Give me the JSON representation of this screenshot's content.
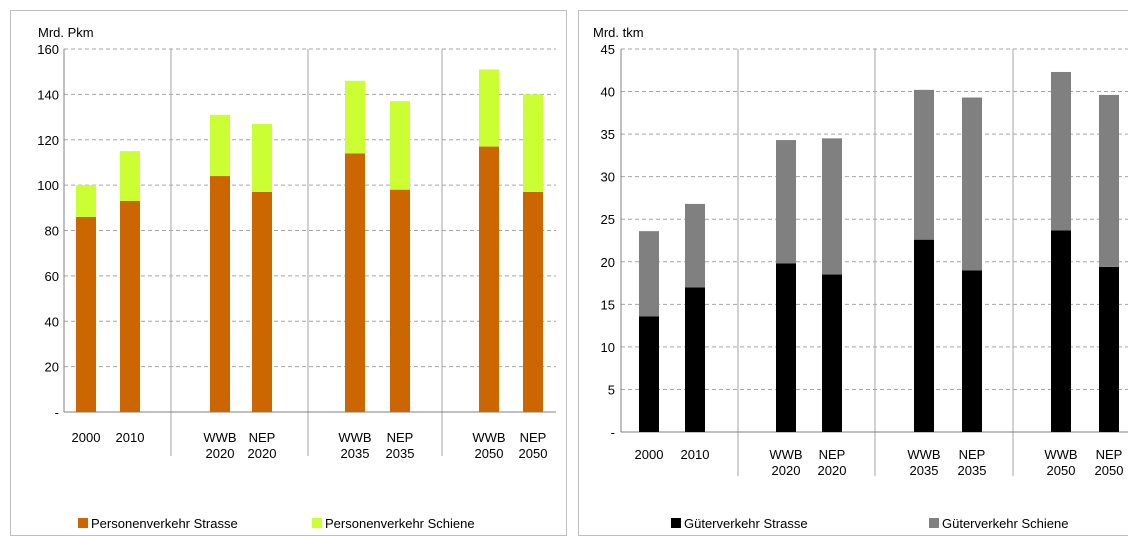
{
  "chart_data": [
    {
      "type": "bar",
      "stacked": true,
      "ylabel": "Mrd. Pkm",
      "ylim": [
        0,
        160
      ],
      "yticks": [
        "-",
        "20",
        "40",
        "60",
        "80",
        "100",
        "120",
        "140",
        "160"
      ],
      "grid": "horizontal dashed",
      "legend_position": "bottom",
      "categories": [
        [
          "2000"
        ],
        [
          "2010"
        ],
        [
          "WWB",
          "2020"
        ],
        [
          "NEP",
          "2020"
        ],
        [
          "WWB",
          "2035"
        ],
        [
          "NEP",
          "2035"
        ],
        [
          "WWB",
          "2050"
        ],
        [
          "NEP",
          "2050"
        ]
      ],
      "series": [
        {
          "name": "Personenverkehr Strasse",
          "color": "#cc6600",
          "values": [
            86,
            93,
            104,
            97,
            114,
            98,
            117,
            97
          ]
        },
        {
          "name": "Personenverkehr Schiene",
          "color": "#ccff33",
          "values": [
            14,
            22,
            27,
            30,
            32,
            39,
            34,
            43
          ]
        }
      ]
    },
    {
      "type": "bar",
      "stacked": true,
      "ylabel": "Mrd. tkm",
      "ylim": [
        0,
        45
      ],
      "yticks": [
        "-",
        "5",
        "10",
        "15",
        "20",
        "25",
        "30",
        "35",
        "40",
        "45"
      ],
      "grid": "horizontal dashed",
      "legend_position": "bottom",
      "categories": [
        [
          "2000"
        ],
        [
          "2010"
        ],
        [
          "WWB",
          "2020"
        ],
        [
          "NEP",
          "2020"
        ],
        [
          "WWB",
          "2035"
        ],
        [
          "NEP",
          "2035"
        ],
        [
          "WWB",
          "2050"
        ],
        [
          "NEP",
          "2050"
        ]
      ],
      "series": [
        {
          "name": "Güterverkehr Strasse",
          "color": "#000000",
          "values": [
            13.6,
            17.0,
            19.8,
            18.5,
            22.6,
            19.0,
            23.7,
            19.4
          ]
        },
        {
          "name": "Güterverkehr Schiene",
          "color": "#808080",
          "values": [
            10.0,
            9.8,
            14.5,
            16.0,
            17.6,
            20.3,
            18.6,
            20.2
          ]
        }
      ]
    }
  ]
}
